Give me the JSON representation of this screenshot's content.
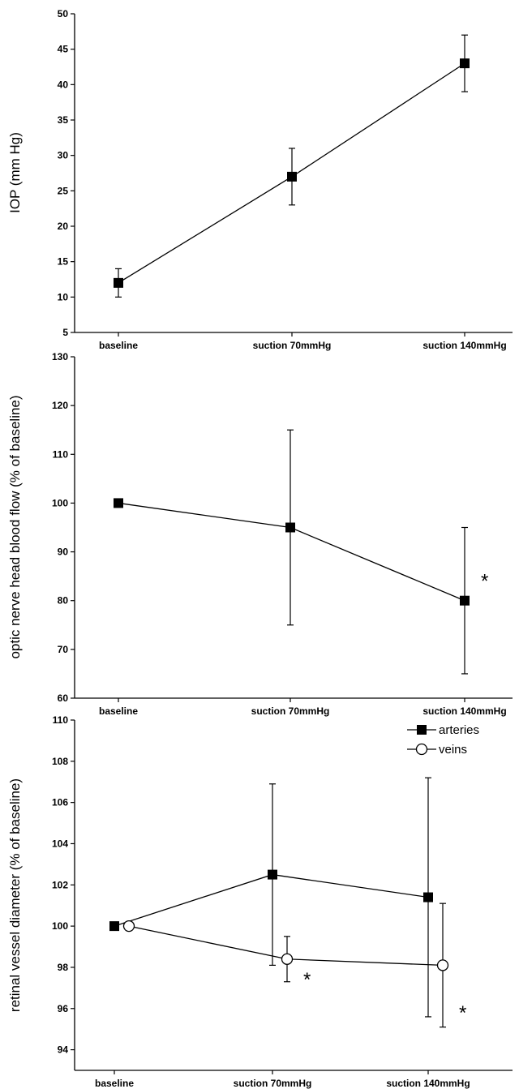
{
  "chart_data": [
    {
      "type": "line",
      "categories": [
        "baseline",
        "suction 70mmHg",
        "suction 140mmHg"
      ],
      "ylabel": "IOP (mm Hg)",
      "ylim": [
        5,
        50
      ],
      "yticks": [
        5,
        10,
        15,
        20,
        25,
        30,
        35,
        40,
        45,
        50
      ],
      "series": [
        {
          "marker": "square",
          "values": [
            12,
            27,
            43
          ],
          "err_low": [
            10,
            23,
            39
          ],
          "err_high": [
            14,
            31,
            47
          ]
        }
      ],
      "annotations": []
    },
    {
      "type": "line",
      "categories": [
        "baseline",
        "suction 70mmHg",
        "suction 140mmHg"
      ],
      "ylabel": "optic nerve head blood flow (% of baseline)",
      "ylim": [
        60,
        130
      ],
      "yticks": [
        60,
        70,
        80,
        90,
        100,
        110,
        120,
        130
      ],
      "series": [
        {
          "marker": "square",
          "values": [
            100,
            95,
            80
          ],
          "err_low": [
            100,
            75,
            65
          ],
          "err_high": [
            100,
            115,
            95
          ]
        }
      ],
      "annotations": [
        {
          "text": "*",
          "category": 2,
          "y": 84
        }
      ]
    },
    {
      "type": "line",
      "categories": [
        "baseline",
        "suction 70mmHg",
        "suction 140mmHg"
      ],
      "ylabel": "retinal vessel diameter (% of baseline)",
      "ylim": [
        93,
        110
      ],
      "yticks": [
        94,
        96,
        98,
        100,
        102,
        104,
        106,
        108,
        110
      ],
      "legend": "top-right",
      "series": [
        {
          "name": "arteries",
          "marker": "square",
          "values": [
            100,
            102.5,
            101.4
          ],
          "err_low": [
            100,
            98.1,
            95.6
          ],
          "err_high": [
            100,
            106.9,
            107.2
          ]
        },
        {
          "name": "veins",
          "marker": "circle",
          "values": [
            100,
            98.4,
            98.1
          ],
          "err_low": [
            100,
            97.3,
            95.1
          ],
          "err_high": [
            100,
            99.5,
            101.1
          ]
        }
      ],
      "annotations": [
        {
          "text": "*",
          "category": 1,
          "series": 1,
          "y": 97.4
        },
        {
          "text": "*",
          "category": 2,
          "series": 1,
          "y": 95.8
        }
      ]
    }
  ]
}
